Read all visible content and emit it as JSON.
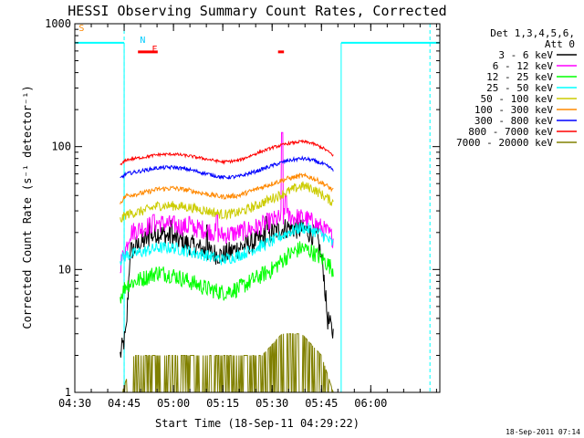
{
  "chart_data": {
    "type": "line",
    "title": "HESSI Observing Summary Count Rates, Corrected",
    "xlabel": "Start Time (18-Sep-11 04:29:22)",
    "ylabel": "Corrected Count Rate (s⁻¹ detector⁻¹)",
    "yscale": "log",
    "ylim": [
      1,
      1000
    ],
    "xlim_minutes": [
      4.5,
      6.35
    ],
    "xticks": [
      {
        "label": "04:30",
        "h": 4.5
      },
      {
        "label": "04:45",
        "h": 4.75
      },
      {
        "label": "05:00",
        "h": 5.0
      },
      {
        "label": "05:15",
        "h": 5.25
      },
      {
        "label": "05:30",
        "h": 5.5
      },
      {
        "label": "05:45",
        "h": 5.75
      },
      {
        "label": "06:00",
        "h": 6.0
      }
    ],
    "yticks": [
      {
        "label": "1",
        "v": 1
      },
      {
        "label": "10",
        "v": 10
      },
      {
        "label": "100",
        "v": 100
      },
      {
        "label": "1000",
        "v": 1000
      }
    ],
    "legend_title": [
      "Det 1,3,4,5,6,",
      "Att 0"
    ],
    "grid": false,
    "legend_position": "right",
    "series": [
      {
        "name": "3 - 6 keV",
        "color": "#000000",
        "points": [
          [
            4.73,
            2
          ],
          [
            4.76,
            3
          ],
          [
            4.78,
            14
          ],
          [
            4.85,
            17
          ],
          [
            4.92,
            20
          ],
          [
            5.0,
            18
          ],
          [
            5.08,
            16
          ],
          [
            5.17,
            14
          ],
          [
            5.25,
            13
          ],
          [
            5.33,
            15
          ],
          [
            5.42,
            17
          ],
          [
            5.5,
            20
          ],
          [
            5.58,
            22
          ],
          [
            5.67,
            21
          ],
          [
            5.73,
            18
          ],
          [
            5.76,
            10
          ],
          [
            5.78,
            4
          ],
          [
            5.81,
            3
          ]
        ],
        "noise": 0.09,
        "spikes": [
          [
            4.88,
            24
          ],
          [
            4.99,
            25
          ],
          [
            5.17,
            23
          ],
          [
            5.47,
            27
          ]
        ]
      },
      {
        "name": "6 - 12 keV",
        "color": "#ff00ff",
        "points": [
          [
            4.73,
            11
          ],
          [
            4.76,
            15
          ],
          [
            4.78,
            20
          ],
          [
            4.85,
            22
          ],
          [
            4.92,
            24
          ],
          [
            5.0,
            23
          ],
          [
            5.08,
            22
          ],
          [
            5.17,
            21
          ],
          [
            5.25,
            19
          ],
          [
            5.33,
            20
          ],
          [
            5.42,
            22
          ],
          [
            5.5,
            25
          ],
          [
            5.58,
            27
          ],
          [
            5.67,
            26
          ],
          [
            5.73,
            23
          ],
          [
            5.78,
            20
          ],
          [
            5.81,
            18
          ]
        ],
        "noise": 0.08,
        "spikes": [
          [
            4.9,
            28
          ],
          [
            5.08,
            27
          ],
          [
            5.22,
            28
          ],
          [
            5.55,
            130
          ],
          [
            5.57,
            40
          ]
        ]
      },
      {
        "name": "12 - 25 keV",
        "color": "#00ff00",
        "points": [
          [
            4.73,
            6
          ],
          [
            4.76,
            7.5
          ],
          [
            4.85,
            8.5
          ],
          [
            4.92,
            9.5
          ],
          [
            5.0,
            9
          ],
          [
            5.08,
            8
          ],
          [
            5.17,
            7
          ],
          [
            5.25,
            6.5
          ],
          [
            5.33,
            7
          ],
          [
            5.42,
            8.5
          ],
          [
            5.5,
            10
          ],
          [
            5.58,
            13
          ],
          [
            5.65,
            15
          ],
          [
            5.7,
            14
          ],
          [
            5.76,
            12
          ],
          [
            5.81,
            10
          ]
        ],
        "noise": 0.07,
        "spikes": []
      },
      {
        "name": "25 - 50 keV",
        "color": "#00ffff",
        "points": [
          [
            4.73,
            12
          ],
          [
            4.76,
            13
          ],
          [
            4.85,
            14
          ],
          [
            4.92,
            15
          ],
          [
            5.0,
            15
          ],
          [
            5.08,
            14
          ],
          [
            5.17,
            13
          ],
          [
            5.25,
            12
          ],
          [
            5.33,
            13
          ],
          [
            5.42,
            15
          ],
          [
            5.5,
            17
          ],
          [
            5.58,
            20
          ],
          [
            5.65,
            22
          ],
          [
            5.7,
            21
          ],
          [
            5.76,
            19
          ],
          [
            5.81,
            16
          ]
        ],
        "noise": 0.05,
        "spikes": []
      },
      {
        "name": "50 - 100 keV",
        "color": "#cccc00",
        "points": [
          [
            4.73,
            25
          ],
          [
            4.76,
            28
          ],
          [
            4.85,
            30
          ],
          [
            4.92,
            33
          ],
          [
            5.0,
            33
          ],
          [
            5.08,
            32
          ],
          [
            5.17,
            30
          ],
          [
            5.25,
            28
          ],
          [
            5.33,
            29
          ],
          [
            5.42,
            33
          ],
          [
            5.5,
            38
          ],
          [
            5.58,
            43
          ],
          [
            5.65,
            48
          ],
          [
            5.7,
            46
          ],
          [
            5.76,
            40
          ],
          [
            5.81,
            35
          ]
        ],
        "noise": 0.04,
        "spikes": []
      },
      {
        "name": "100 - 300 keV",
        "color": "#ff8800",
        "points": [
          [
            4.73,
            35
          ],
          [
            4.76,
            40
          ],
          [
            4.85,
            42
          ],
          [
            4.92,
            45
          ],
          [
            5.0,
            46
          ],
          [
            5.08,
            44
          ],
          [
            5.17,
            41
          ],
          [
            5.25,
            39
          ],
          [
            5.33,
            40
          ],
          [
            5.42,
            45
          ],
          [
            5.5,
            50
          ],
          [
            5.58,
            55
          ],
          [
            5.65,
            58
          ],
          [
            5.7,
            56
          ],
          [
            5.76,
            50
          ],
          [
            5.81,
            44
          ]
        ],
        "noise": 0.02,
        "spikes": []
      },
      {
        "name": "300 - 800 keV",
        "color": "#0000ff",
        "points": [
          [
            4.73,
            55
          ],
          [
            4.76,
            60
          ],
          [
            4.85,
            64
          ],
          [
            4.92,
            67
          ],
          [
            5.0,
            68
          ],
          [
            5.08,
            65
          ],
          [
            5.17,
            60
          ],
          [
            5.25,
            56
          ],
          [
            5.33,
            57
          ],
          [
            5.42,
            63
          ],
          [
            5.5,
            70
          ],
          [
            5.58,
            77
          ],
          [
            5.65,
            80
          ],
          [
            5.7,
            78
          ],
          [
            5.76,
            72
          ],
          [
            5.81,
            65
          ]
        ],
        "noise": 0.015,
        "spikes": []
      },
      {
        "name": "800 - 7000 keV",
        "color": "#ff0000",
        "points": [
          [
            4.73,
            70
          ],
          [
            4.76,
            78
          ],
          [
            4.85,
            82
          ],
          [
            4.92,
            86
          ],
          [
            5.0,
            87
          ],
          [
            5.08,
            84
          ],
          [
            5.17,
            79
          ],
          [
            5.25,
            75
          ],
          [
            5.33,
            77
          ],
          [
            5.42,
            88
          ],
          [
            5.5,
            98
          ],
          [
            5.58,
            106
          ],
          [
            5.65,
            110
          ],
          [
            5.7,
            107
          ],
          [
            5.76,
            97
          ],
          [
            5.81,
            85
          ]
        ],
        "noise": 0.012,
        "spikes": []
      },
      {
        "name": "7000 - 20000 keV",
        "color": "#808000",
        "points": [
          [
            4.74,
            1
          ],
          [
            4.8,
            2
          ],
          [
            4.9,
            2
          ],
          [
            5.0,
            2
          ],
          [
            5.1,
            2
          ],
          [
            5.3,
            2
          ],
          [
            5.45,
            2
          ],
          [
            5.55,
            3
          ],
          [
            5.65,
            3
          ],
          [
            5.75,
            2
          ],
          [
            5.81,
            1
          ]
        ],
        "noise": 0.35,
        "spikes": []
      }
    ],
    "annotations": {
      "markers": [
        {
          "label": "S",
          "color": "#ff8800",
          "h": 4.52,
          "v": 870
        },
        {
          "label": "N",
          "color": "#00ccff",
          "h": 4.83,
          "v": 700
        },
        {
          "label": "F",
          "color": "#ff0000",
          "h": 4.89,
          "v": 590
        }
      ],
      "flare_bars": [
        {
          "color": "#ff0000",
          "h0": 4.82,
          "h1": 4.92,
          "v": 590
        },
        {
          "color": "#ff0000",
          "h0": 5.53,
          "h1": 5.56,
          "v": 590
        }
      ],
      "saa_segments": [
        {
          "color": "#00ffff",
          "h0": 4.5,
          "h1": 4.75,
          "v": 700
        },
        {
          "color": "#00ffff",
          "h0": 5.85,
          "h1": 6.35,
          "v": 700
        }
      ],
      "night_lines": [
        {
          "color": "#00ffff",
          "h": 4.75
        },
        {
          "color": "#00ffff",
          "h": 6.3
        }
      ]
    }
  },
  "footer": {
    "timestamp": "18-Sep-2011 07:14"
  }
}
